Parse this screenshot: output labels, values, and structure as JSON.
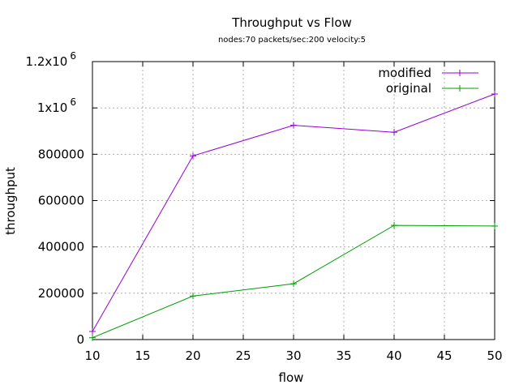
{
  "chart_data": {
    "type": "line",
    "title": "Throughput vs Flow",
    "subtitle": "nodes:70  packets/sec:200 velocity:5",
    "xlabel": "flow",
    "ylabel": "throughput",
    "xlim": [
      10,
      50
    ],
    "ylim": [
      0,
      1200000
    ],
    "grid": true,
    "legend_position": "top-right",
    "x_ticks": [
      "10",
      "15",
      "20",
      "25",
      "30",
      "35",
      "40",
      "45",
      "50"
    ],
    "y_ticks": [
      {
        "value": 0,
        "label": "0"
      },
      {
        "value": 200000,
        "label": "200000"
      },
      {
        "value": 400000,
        "label": "400000"
      },
      {
        "value": 600000,
        "label": "600000"
      },
      {
        "value": 800000,
        "label": "800000"
      },
      {
        "value": 1000000,
        "label": "1x10",
        "exp": "6"
      },
      {
        "value": 1200000,
        "label": "1.2x10",
        "exp": "6"
      }
    ],
    "series": [
      {
        "name": "modified",
        "color": "#9400d3",
        "points": [
          [
            10,
            35000
          ],
          [
            20,
            793000
          ],
          [
            30,
            925000
          ],
          [
            40,
            895000
          ],
          [
            50,
            1060000
          ]
        ]
      },
      {
        "name": "original",
        "color": "#009e00",
        "points": [
          [
            10,
            8000
          ],
          [
            20,
            188000
          ],
          [
            30,
            241000
          ],
          [
            40,
            493000
          ],
          [
            50,
            490000
          ]
        ]
      }
    ]
  }
}
